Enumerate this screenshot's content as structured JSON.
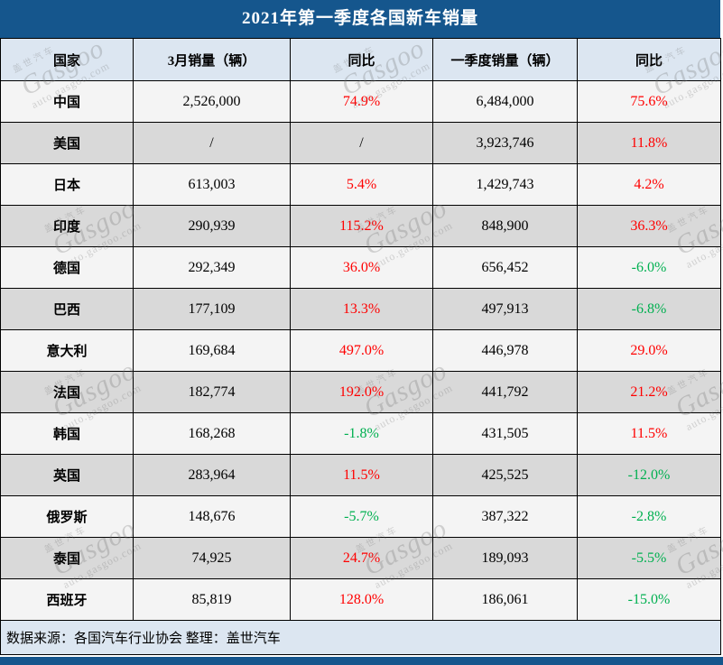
{
  "title": "2021年第一季度各国新车销量",
  "chart_data": {
    "type": "table",
    "title": "2021年第一季度各国新车销量",
    "columns": [
      "国家",
      "3月销量（辆）",
      "同比",
      "一季度销量（辆）",
      "同比"
    ],
    "rows": [
      {
        "country": "中国",
        "march_sales": "2,526,000",
        "march_yoy": "74.9%",
        "q1_sales": "6,484,000",
        "q1_yoy": "75.6%"
      },
      {
        "country": "美国",
        "march_sales": "/",
        "march_yoy": "/",
        "q1_sales": "3,923,746",
        "q1_yoy": "11.8%"
      },
      {
        "country": "日本",
        "march_sales": "613,003",
        "march_yoy": "5.4%",
        "q1_sales": "1,429,743",
        "q1_yoy": "4.2%"
      },
      {
        "country": "印度",
        "march_sales": "290,939",
        "march_yoy": "115.2%",
        "q1_sales": "848,900",
        "q1_yoy": "36.3%"
      },
      {
        "country": "德国",
        "march_sales": "292,349",
        "march_yoy": "36.0%",
        "q1_sales": "656,452",
        "q1_yoy": "-6.0%"
      },
      {
        "country": "巴西",
        "march_sales": "177,109",
        "march_yoy": "13.3%",
        "q1_sales": "497,913",
        "q1_yoy": "-6.8%"
      },
      {
        "country": "意大利",
        "march_sales": "169,684",
        "march_yoy": "497.0%",
        "q1_sales": "446,978",
        "q1_yoy": "29.0%"
      },
      {
        "country": "法国",
        "march_sales": "182,774",
        "march_yoy": "192.0%",
        "q1_sales": "441,792",
        "q1_yoy": "21.2%"
      },
      {
        "country": "韩国",
        "march_sales": "168,268",
        "march_yoy": "-1.8%",
        "q1_sales": "431,505",
        "q1_yoy": "11.5%"
      },
      {
        "country": "英国",
        "march_sales": "283,964",
        "march_yoy": "11.5%",
        "q1_sales": "425,525",
        "q1_yoy": "-12.0%"
      },
      {
        "country": "俄罗斯",
        "march_sales": "148,676",
        "march_yoy": "-5.7%",
        "q1_sales": "387,322",
        "q1_yoy": "-2.8%"
      },
      {
        "country": "泰国",
        "march_sales": "74,925",
        "march_yoy": "24.7%",
        "q1_sales": "189,093",
        "q1_yoy": "-5.5%"
      },
      {
        "country": "西班牙",
        "march_sales": "85,819",
        "march_yoy": "128.0%",
        "q1_sales": "186,061",
        "q1_yoy": "-15.0%"
      }
    ]
  },
  "footer": {
    "text": "数据来源：各国汽车行业协会 整理：盖世汽车"
  },
  "watermark": {
    "brand_cn": "盖世汽车",
    "brand": "Gasgoo",
    "url": "auto.gasgoo.com"
  },
  "colors": {
    "title_bar": "#15568D",
    "header_bg": "#DCE6F1",
    "alt_row_bg": "#D9D9D9",
    "light_row_bg": "#F4F4F4",
    "footer_bg": "#DCE6F1",
    "positive_pct": "#FF0000",
    "negative_pct": "#00B050",
    "bottom_bar": "#15568D"
  }
}
